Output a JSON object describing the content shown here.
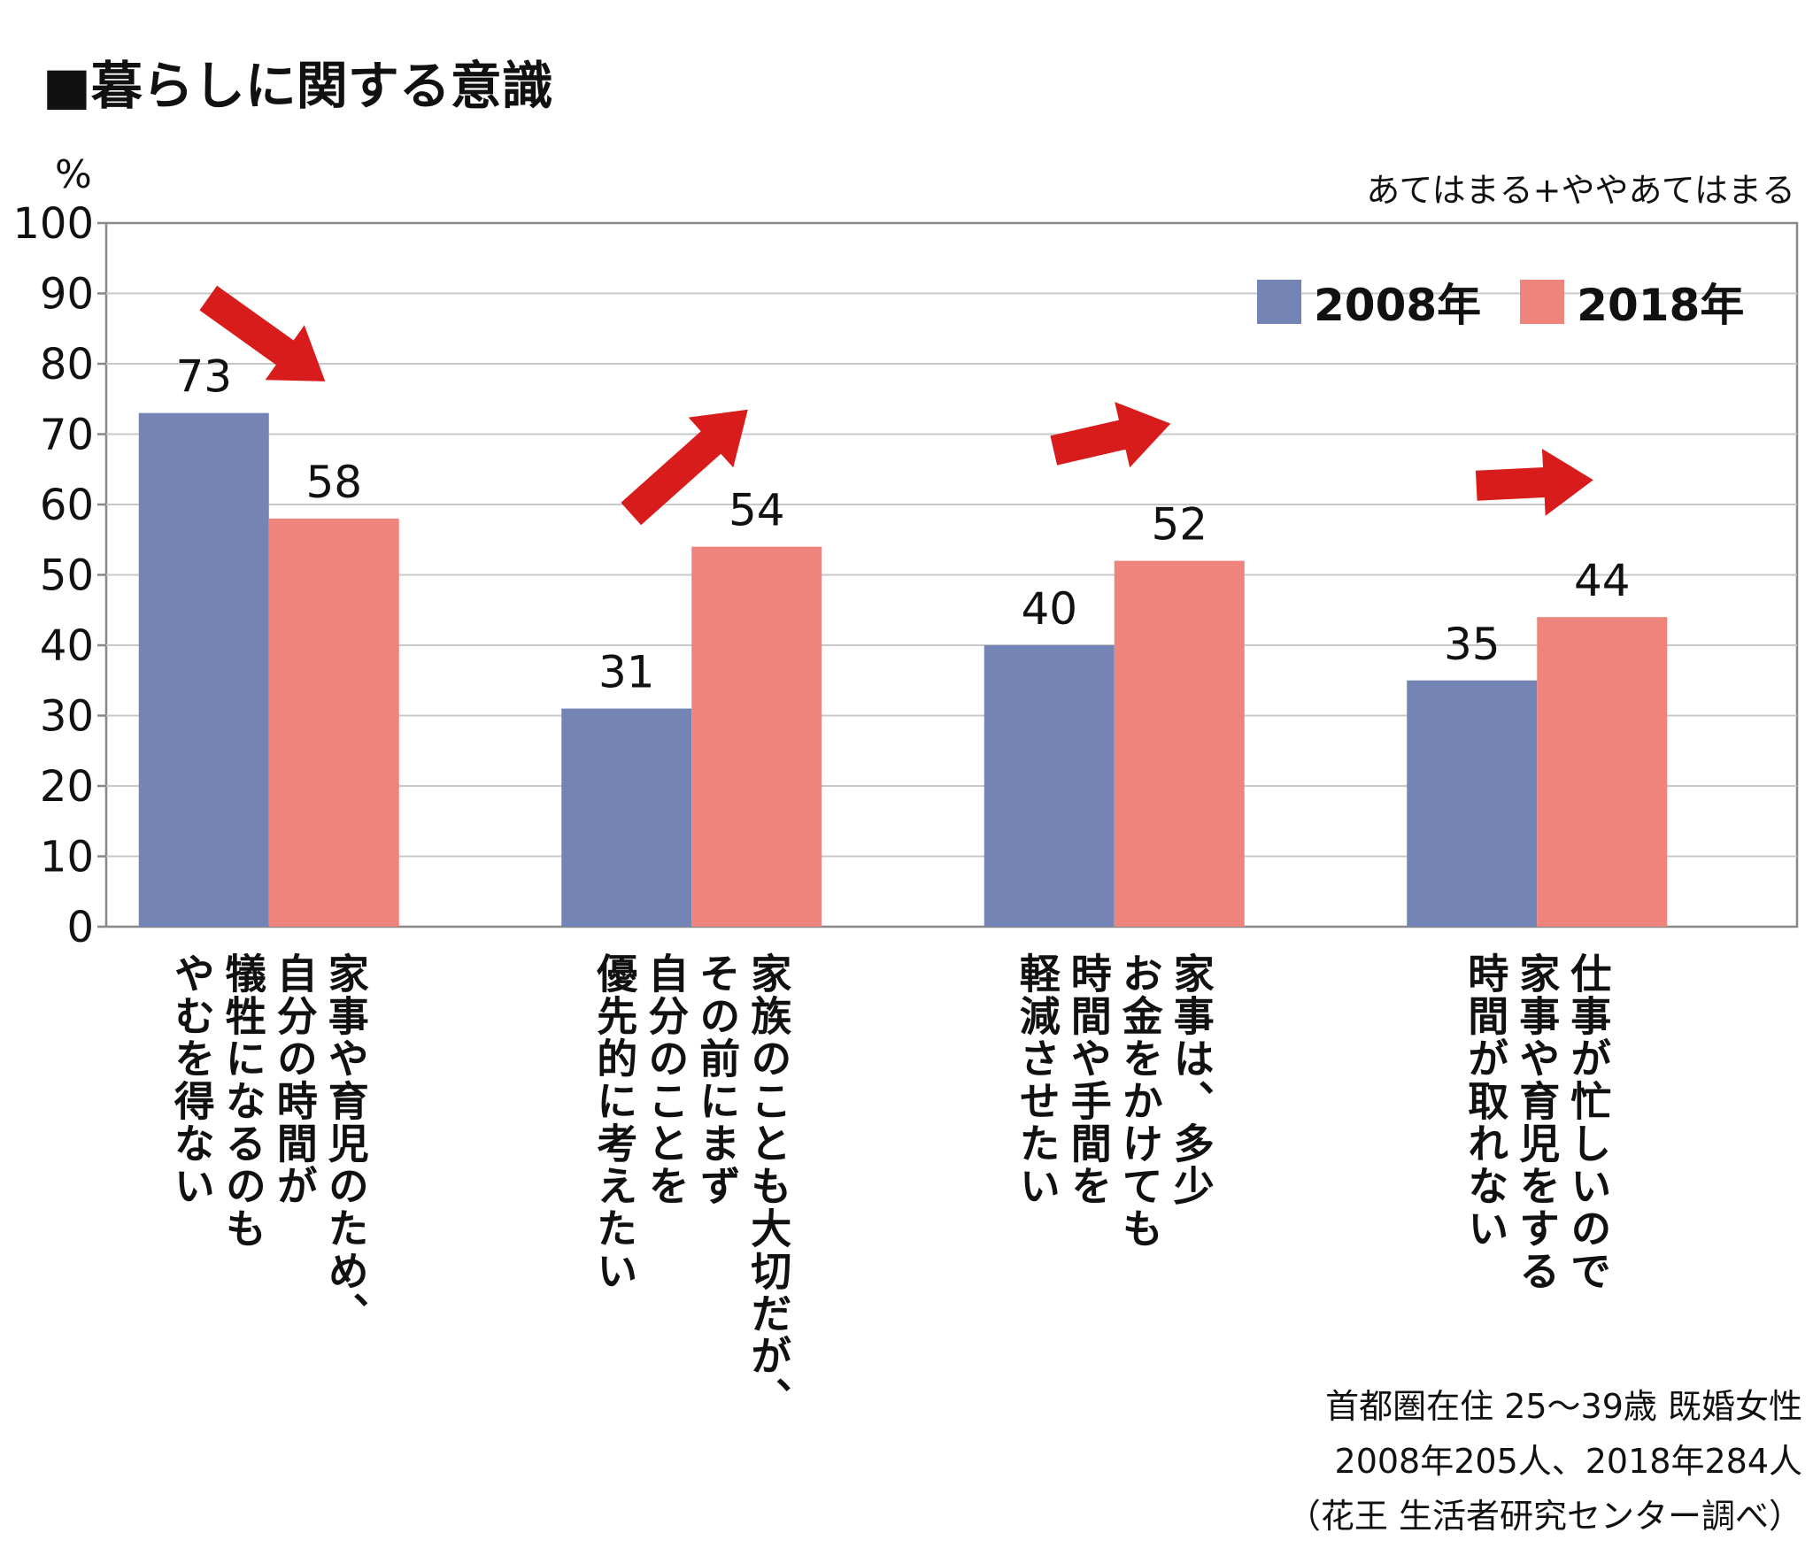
{
  "title": "■暮らしに関する意識",
  "y_unit": "%",
  "subnote": "あてはまる+ややあてはまる",
  "colors": {
    "s2008": "#7484b5",
    "s2018": "#ef847c",
    "arrow": "#d81c1c",
    "grid": "#c8c8c8",
    "axis": "#888888"
  },
  "chart_data": {
    "type": "bar",
    "title": "",
    "xlabel": "",
    "ylabel": "%",
    "ylim": [
      0,
      100
    ],
    "yticks": [
      0,
      10,
      20,
      30,
      40,
      50,
      60,
      70,
      80,
      90,
      100
    ],
    "grid": true,
    "legend_position": "top-right",
    "categories": [
      "家事や育児のため、自分の時間が犠牲になるのもやむを得ない",
      "家族のことも大切だが、その前にまず自分のことを優先的に考えたい",
      "家事は、多少お金をかけても時間や手間を軽減させたい",
      "仕事が忙しいので家事や育児をする時間が取れない"
    ],
    "series": [
      {
        "name": "2008年",
        "values": [
          73,
          31,
          40,
          35
        ]
      },
      {
        "name": "2018年",
        "values": [
          58,
          54,
          52,
          44
        ]
      }
    ],
    "trend": [
      "down",
      "up",
      "up",
      "up"
    ]
  },
  "category_lines": [
    [
      "家事や育児のため、",
      "自分の時間が",
      "犠牲になるのも",
      "やむを得ない"
    ],
    [
      "家族のことも大切だが、",
      "その前にまず",
      "自分のことを",
      "優先的に考えたい"
    ],
    [
      "家事は、多少",
      "お金をかけても",
      "時間や手間を",
      "軽減させたい"
    ],
    [
      "仕事が忙しいので",
      "家事や育児をする",
      "時間が取れない"
    ]
  ],
  "source_lines": [
    "首都圏在住 25〜39歳 既婚女性",
    "2008年205人、2018年284人",
    "（花王 生活者研究センター調べ）"
  ]
}
